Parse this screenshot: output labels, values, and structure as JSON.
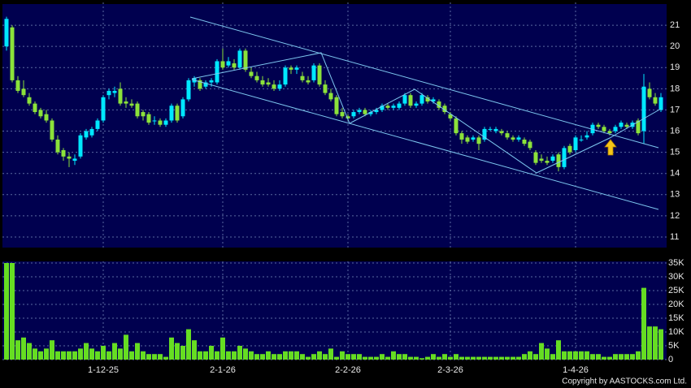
{
  "chart_data": [
    {
      "type": "candlestick",
      "up_color": "#00e8ff",
      "down_color": "#8be23a",
      "open": [
        20.0,
        20.9,
        18.4,
        18.0,
        17.6,
        17.3,
        17.0,
        16.8,
        16.5,
        15.6,
        15.1,
        14.8,
        14.6,
        14.8,
        15.7,
        15.8,
        16.1,
        16.5,
        17.7,
        17.8,
        18.0,
        17.4,
        17.3,
        17.3,
        16.9,
        16.8,
        16.5,
        16.5,
        16.3,
        16.5,
        17.2,
        16.7,
        17.5,
        18.3,
        18.4,
        18.1,
        18.3,
        18.3,
        19.3,
        19.1,
        19.2,
        19.0,
        19.8,
        18.8,
        18.6,
        18.4,
        18.3,
        18.2,
        18.0,
        18.2,
        19.0,
        18.9,
        18.6,
        18.4,
        18.4,
        19.1,
        18.2,
        17.8,
        17.6,
        16.9,
        16.7,
        16.7,
        16.9,
        17.0,
        16.8,
        16.9,
        17.0,
        17.2,
        17.1,
        17.1,
        17.3,
        17.7,
        17.2,
        17.3,
        17.6,
        17.4,
        17.4,
        17.2,
        16.8,
        16.6,
        15.9,
        15.7,
        15.6,
        15.7,
        15.6,
        16.1,
        16.0,
        16.0,
        15.9,
        15.7,
        15.6,
        15.6,
        15.5,
        15.0,
        14.7,
        14.6,
        14.6,
        14.9,
        14.3,
        15.3,
        15.1,
        15.6,
        15.7,
        15.9,
        16.3,
        16.2,
        16.0,
        16.0,
        16.2,
        16.3,
        16.2,
        16.5,
        16.0,
        18.0,
        17.6,
        17.0
      ],
      "high": [
        21.4,
        21.0,
        18.6,
        18.4,
        17.8,
        17.4,
        17.1,
        17.0,
        16.6,
        15.8,
        15.2,
        15.0,
        14.9,
        15.9,
        16.1,
        16.2,
        16.6,
        17.7,
        18.0,
        18.1,
        18.3,
        17.6,
        17.5,
        17.4,
        17.0,
        16.9,
        16.7,
        16.6,
        16.6,
        17.3,
        17.3,
        17.6,
        18.5,
        18.6,
        18.5,
        18.4,
        18.5,
        19.4,
        19.9,
        19.5,
        19.4,
        19.9,
        19.9,
        19.0,
        18.8,
        18.6,
        18.5,
        18.4,
        18.4,
        19.1,
        19.1,
        19.1,
        18.8,
        18.6,
        19.2,
        19.2,
        18.4,
        18.0,
        17.7,
        17.1,
        16.8,
        17.0,
        17.1,
        17.1,
        17.0,
        17.1,
        17.3,
        17.3,
        17.3,
        17.4,
        17.8,
        17.8,
        17.4,
        17.8,
        17.7,
        17.6,
        17.5,
        17.3,
        16.9,
        16.7,
        16.0,
        15.8,
        15.8,
        15.8,
        16.2,
        16.2,
        16.2,
        16.1,
        16.0,
        15.8,
        15.8,
        15.7,
        15.6,
        15.1,
        14.9,
        14.8,
        14.9,
        15.0,
        15.3,
        15.4,
        15.8,
        15.8,
        16.0,
        16.4,
        16.4,
        16.3,
        16.1,
        16.3,
        16.5,
        16.4,
        16.5,
        16.6,
        18.7,
        18.3,
        17.8,
        17.8
      ],
      "low": [
        19.8,
        18.3,
        17.8,
        17.6,
        17.2,
        16.8,
        16.6,
        16.4,
        15.5,
        14.9,
        14.6,
        14.3,
        14.4,
        14.7,
        15.6,
        15.7,
        16.0,
        16.4,
        17.5,
        17.6,
        17.2,
        17.1,
        17.1,
        16.6,
        16.5,
        16.3,
        16.3,
        16.2,
        16.2,
        16.4,
        16.4,
        16.6,
        17.4,
        18.1,
        17.9,
        18.0,
        18.1,
        18.2,
        18.9,
        19.0,
        18.9,
        18.9,
        18.8,
        18.5,
        18.3,
        18.1,
        18.1,
        17.9,
        17.9,
        18.1,
        18.7,
        18.7,
        18.3,
        18.2,
        18.3,
        18.1,
        17.7,
        17.4,
        16.7,
        16.6,
        16.5,
        16.6,
        16.8,
        16.7,
        16.7,
        16.8,
        16.9,
        17.0,
        17.0,
        17.0,
        17.2,
        17.1,
        17.1,
        17.2,
        17.3,
        17.3,
        17.0,
        16.8,
        16.5,
        15.8,
        15.4,
        15.4,
        15.5,
        15.1,
        15.5,
        16.0,
        15.9,
        15.8,
        15.6,
        15.5,
        15.5,
        15.3,
        15.1,
        14.4,
        14.5,
        14.4,
        14.5,
        14.1,
        14.2,
        14.9,
        15.0,
        15.5,
        15.6,
        15.8,
        16.1,
        15.9,
        15.8,
        15.9,
        16.1,
        16.1,
        16.1,
        15.8,
        15.4,
        17.5,
        17.2,
        16.9
      ],
      "close": [
        21.3,
        18.4,
        17.9,
        17.7,
        17.3,
        16.9,
        16.7,
        16.5,
        15.6,
        15.0,
        14.8,
        14.7,
        14.7,
        15.8,
        16.0,
        16.1,
        16.5,
        17.6,
        17.9,
        17.9,
        17.3,
        17.3,
        17.2,
        16.7,
        16.7,
        16.4,
        16.5,
        16.3,
        16.5,
        17.2,
        16.5,
        17.5,
        18.4,
        18.5,
        18.0,
        18.3,
        18.4,
        19.3,
        19.0,
        19.3,
        19.0,
        19.8,
        18.9,
        18.6,
        18.4,
        18.2,
        18.2,
        18.0,
        18.2,
        19.0,
        18.9,
        19.0,
        18.4,
        18.3,
        19.1,
        18.2,
        17.8,
        17.5,
        16.8,
        16.7,
        16.6,
        16.9,
        17.0,
        16.8,
        16.9,
        17.0,
        17.2,
        17.1,
        17.2,
        17.3,
        17.7,
        17.2,
        17.3,
        17.7,
        17.4,
        17.5,
        17.1,
        16.9,
        16.6,
        15.9,
        15.6,
        15.5,
        15.7,
        15.4,
        16.1,
        16.1,
        16.1,
        15.9,
        15.7,
        15.6,
        15.7,
        15.4,
        15.2,
        14.5,
        14.6,
        14.5,
        14.8,
        14.3,
        15.2,
        15.0,
        15.7,
        15.6,
        15.8,
        16.3,
        16.2,
        16.0,
        15.9,
        16.2,
        16.4,
        16.2,
        16.4,
        15.9,
        18.1,
        17.6,
        17.3,
        17.6
      ],
      "ylim": [
        10.5,
        22
      ],
      "yticks": [
        11,
        12,
        13,
        14,
        15,
        16,
        17,
        18,
        19,
        20,
        21
      ],
      "grid": true
    },
    {
      "type": "bar",
      "color": "#66dd22",
      "categories": [
        null,
        null,
        null,
        null,
        null,
        null,
        null,
        null,
        null,
        null,
        null,
        null,
        null,
        null,
        null,
        null,
        null,
        "1-12-25",
        null,
        null,
        null,
        null,
        null,
        null,
        null,
        null,
        null,
        null,
        null,
        null,
        null,
        null,
        null,
        null,
        null,
        null,
        null,
        null,
        "2-1-26",
        null,
        null,
        null,
        null,
        null,
        null,
        null,
        null,
        null,
        null,
        null,
        null,
        null,
        null,
        null,
        null,
        null,
        null,
        null,
        null,
        null,
        "2-2-26",
        null,
        null,
        null,
        null,
        null,
        null,
        null,
        null,
        null,
        null,
        null,
        null,
        null,
        null,
        null,
        null,
        null,
        "2-3-26",
        null,
        null,
        null,
        null,
        null,
        null,
        null,
        null,
        null,
        null,
        null,
        null,
        null,
        null,
        null,
        null,
        null,
        null,
        null,
        null,
        null,
        "1-4-26",
        null,
        null,
        null,
        null,
        null,
        null,
        null,
        null,
        null,
        null,
        null,
        null,
        null,
        null,
        null
      ],
      "values": [
        35000,
        35000,
        7000,
        8000,
        6000,
        4000,
        3000,
        4000,
        7000,
        3000,
        3000,
        3000,
        3000,
        4000,
        6000,
        4000,
        3000,
        5000,
        3000,
        6000,
        4000,
        9000,
        3000,
        6000,
        3000,
        2000,
        2000,
        2000,
        1000,
        8000,
        6000,
        5000,
        11000,
        7000,
        3000,
        3000,
        5000,
        3000,
        8000,
        3000,
        3000,
        5000,
        4000,
        3000,
        2000,
        2000,
        3000,
        2000,
        2000,
        3000,
        3000,
        3000,
        2000,
        1000,
        2000,
        3000,
        2000,
        4000,
        1000,
        3000,
        2000,
        2000,
        2000,
        1000,
        1000,
        1000,
        2000,
        1000,
        3000,
        2000,
        2000,
        1000,
        1000,
        500,
        1000,
        2000,
        1000,
        2000,
        1000,
        2000,
        1000,
        1000,
        1000,
        1000,
        1000,
        1000,
        1000,
        1000,
        1000,
        1000,
        1000,
        2000,
        3000,
        2000,
        6000,
        4000,
        2000,
        7000,
        3000,
        3000,
        3000,
        3000,
        3000,
        2000,
        2000,
        1000,
        1000,
        2000,
        2000,
        2000,
        2000,
        3000,
        26000,
        12000,
        12000,
        11000
      ],
      "ylim": [
        0,
        35000
      ],
      "yticks": [
        0,
        {
          "value": 5000,
          "label": "5K"
        },
        {
          "value": 10000,
          "label": "10K"
        },
        {
          "value": 15000,
          "label": "15K"
        },
        {
          "value": 20000,
          "label": "20K"
        },
        {
          "value": 25000,
          "label": "25K"
        },
        {
          "value": 30000,
          "label": "30K"
        },
        {
          "value": 35000,
          "label": "35K"
        }
      ],
      "grid": true
    }
  ],
  "footer": {
    "copyright": "Copyright by AASTOCKS.com Ltd."
  }
}
